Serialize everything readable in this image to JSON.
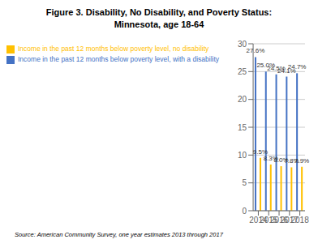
{
  "chart_data": {
    "type": "bar",
    "title": "Figure 3. Disability, No Disability, and Poverty Status:\nMinnesota, age 18-64",
    "categories": [
      "2014",
      "2015",
      "2016",
      "2017",
      "2018"
    ],
    "series": [
      {
        "name": "Income in the past 12 months below poverty level, with a disability",
        "color": "#4472C4",
        "values": [
          27.6,
          25.0,
          24.5,
          24.1,
          24.7
        ],
        "value_labels": [
          "27.6%",
          "25.0%",
          "24.5%",
          "24.1%",
          "24.7%"
        ]
      },
      {
        "name": "Income in the past 12 months below poverty level, no disability",
        "color": "#FFC000",
        "values": [
          9.5,
          8.3,
          8.0,
          7.8,
          7.9
        ],
        "value_labels": [
          "9.5%",
          "8.3%",
          "8.0%",
          "7.8%",
          "7.9%"
        ]
      }
    ],
    "ylim": [
      0,
      30
    ],
    "yticks": [
      0,
      5,
      10,
      15,
      20,
      25,
      30
    ],
    "grid": true,
    "legend": "top",
    "data_labels": true,
    "annotations": [
      "Source: American Community Survey, one year estimates 2013 through 2017"
    ]
  }
}
